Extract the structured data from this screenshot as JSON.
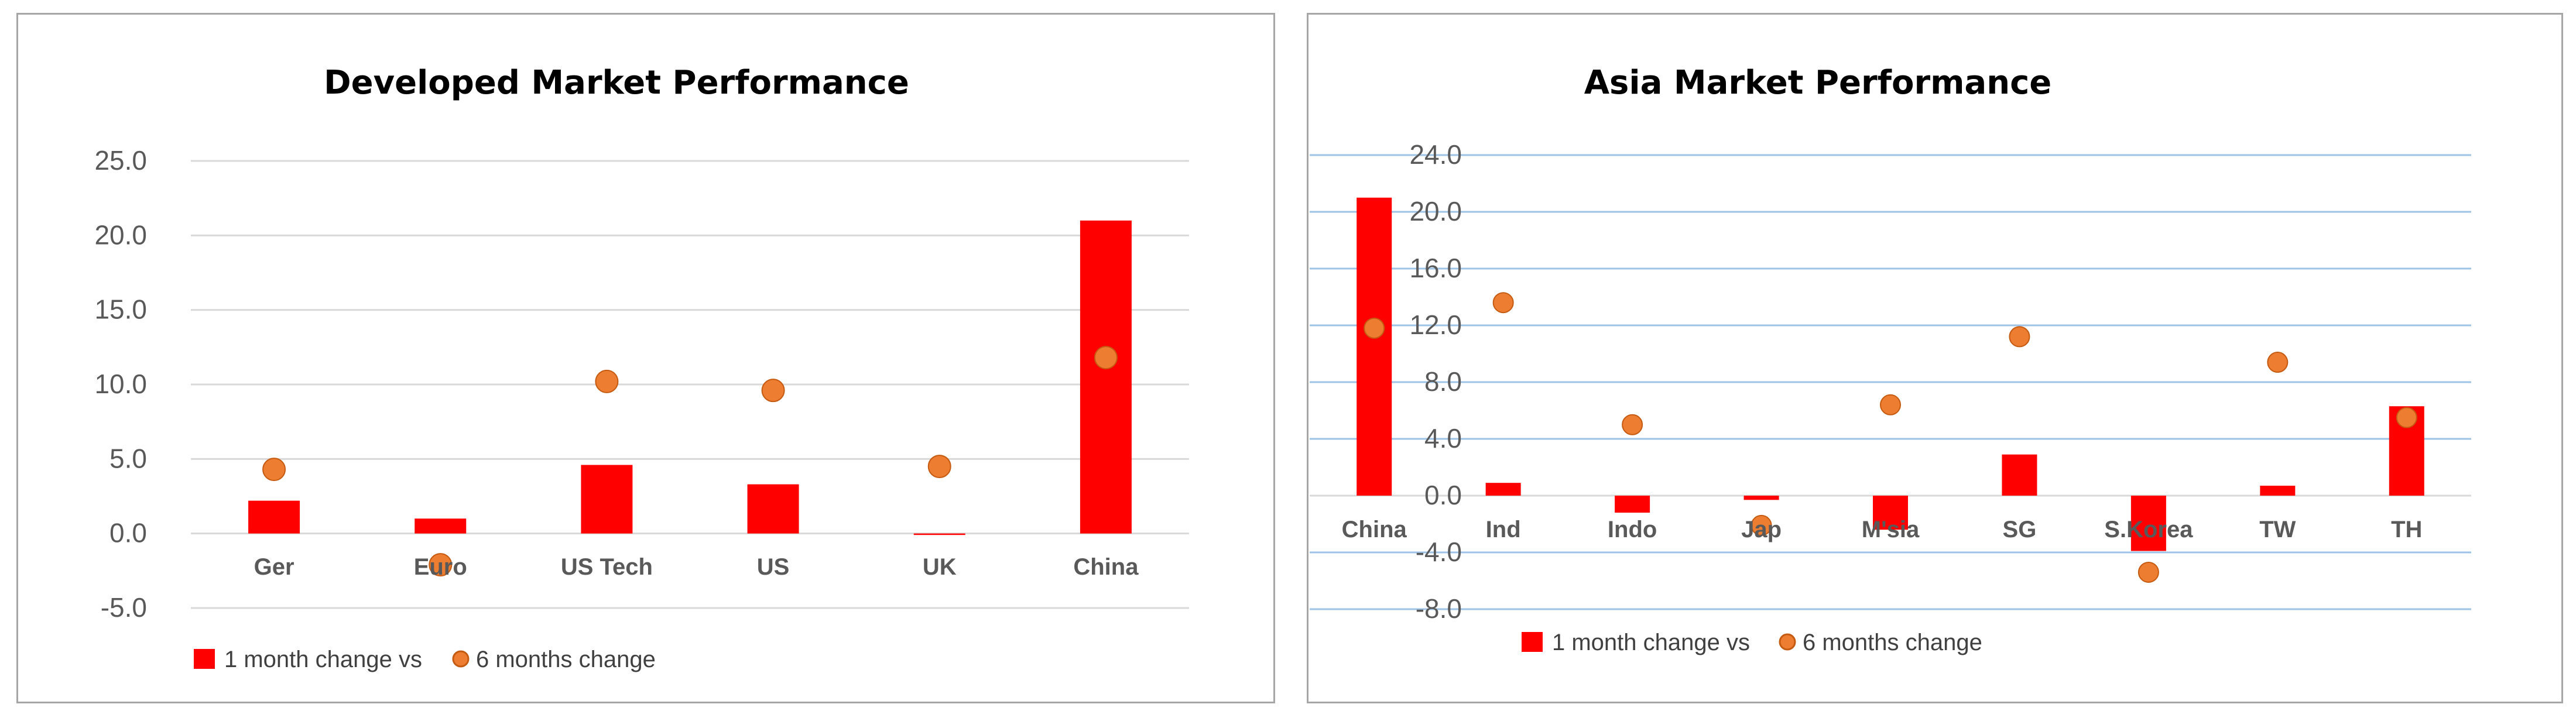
{
  "colors": {
    "bar": "#ff0000",
    "dot": "#ed7d31",
    "dot_stroke": "#c55a11",
    "grid_left": "#d9d9d9",
    "grid_right": "#9dc3e6",
    "axis": "#d9d9d9",
    "text": "#595959"
  },
  "chart_data": [
    {
      "type": "bar",
      "title": "Developed Market Performance",
      "categories": [
        "Ger",
        "Euro",
        "US Tech",
        "US",
        "UK",
        "China"
      ],
      "series": [
        {
          "name": "1 month change vs",
          "type": "bar",
          "values": [
            2.2,
            1.0,
            4.6,
            3.3,
            -0.1,
            21.0
          ]
        },
        {
          "name": "6 months change",
          "type": "scatter",
          "values": [
            4.3,
            -2.1,
            10.2,
            9.6,
            4.5,
            11.8
          ]
        }
      ],
      "ylim": [
        -5,
        25
      ],
      "yticks": [
        "25.0",
        "20.0",
        "15.0",
        "10.0",
        "5.0",
        "0.0",
        "-5.0"
      ],
      "grid": true,
      "legend": "bottom-left"
    },
    {
      "type": "bar",
      "title": "Asia Market Performance",
      "categories": [
        "China",
        "Ind",
        "Indo",
        "Jap",
        "M'sia",
        "SG",
        "S.Korea",
        "TW",
        "TH"
      ],
      "series": [
        {
          "name": "1 month change vs",
          "type": "bar",
          "values": [
            21.0,
            0.9,
            -1.2,
            -0.3,
            -2.4,
            2.9,
            -3.9,
            0.7,
            6.3
          ]
        },
        {
          "name": "6 months change",
          "type": "scatter",
          "values": [
            11.8,
            13.6,
            5.0,
            -2.1,
            6.4,
            11.2,
            -5.4,
            9.4,
            5.5
          ]
        }
      ],
      "ylim": [
        -8,
        24
      ],
      "yticks": [
        "24.0",
        "20.0",
        "16.0",
        "12.0",
        "8.0",
        "4.0",
        "0.0",
        "-4.0",
        "-8.0"
      ],
      "grid": true,
      "legend": "bottom-left"
    }
  ]
}
